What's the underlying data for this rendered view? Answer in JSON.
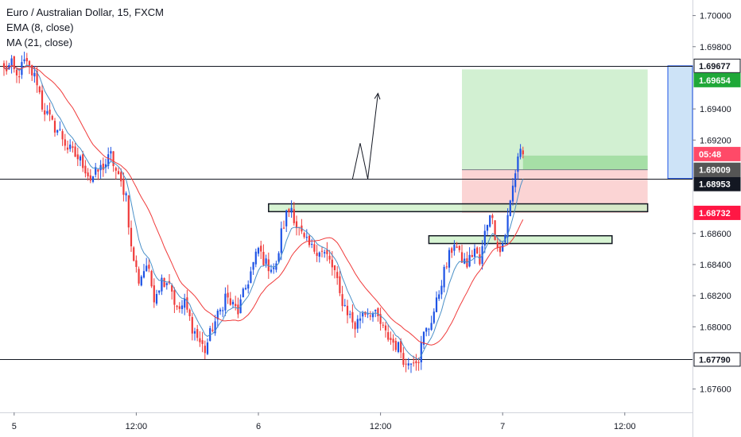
{
  "legend": {
    "symbol": "Euro / Australian Dollar, 15, FXCM",
    "ema": "EMA (8, close)",
    "ma": "MA (21, close)"
  },
  "colors": {
    "up": "#1e53e5",
    "down": "#ef3b3b",
    "ema": "#4a90c8",
    "ma": "#f03b3b",
    "zone_fill": "#c9f0c4",
    "profit_fill": "#d2f0d2",
    "loss_fill": "#fbd4d4",
    "target_tag": "#1fa838",
    "stop_tag": "#ff1744",
    "timer_tag": "#ff4a68",
    "right_box": "#cde3f7"
  },
  "chart_data": {
    "type": "candlestick",
    "ylim": [
      1.6745,
      1.701
    ],
    "y_ticks": [
      "1.70000",
      "1.69800",
      "1.69400",
      "1.69200",
      "1.68600",
      "1.68400",
      "1.68200",
      "1.68000",
      "1.67600"
    ],
    "x_ticks": [
      "5",
      "12:00",
      "6",
      "12:00",
      "7",
      "12:00"
    ],
    "x_tick_bars": [
      4,
      52,
      100,
      148,
      196,
      244
    ],
    "bar_count": 265,
    "price_path": [
      [
        0,
        1.6965
      ],
      [
        3,
        1.6968
      ],
      [
        5,
        1.696
      ],
      [
        8,
        1.697
      ],
      [
        11,
        1.6963
      ],
      [
        13,
        1.6958
      ],
      [
        15,
        1.6942
      ],
      [
        19,
        1.693
      ],
      [
        22,
        1.6925
      ],
      [
        25,
        1.6915
      ],
      [
        28,
        1.691
      ],
      [
        31,
        1.6905
      ],
      [
        34,
        1.6895
      ],
      [
        37,
        1.69
      ],
      [
        40,
        1.6905
      ],
      [
        42,
        1.691
      ],
      [
        45,
        1.6895
      ],
      [
        48,
        1.6885
      ],
      [
        50,
        1.685
      ],
      [
        53,
        1.683
      ],
      [
        56,
        1.684
      ],
      [
        59,
        1.682
      ],
      [
        62,
        1.683
      ],
      [
        65,
        1.683
      ],
      [
        68,
        1.681
      ],
      [
        71,
        1.6815
      ],
      [
        74,
        1.68
      ],
      [
        77,
        1.679
      ],
      [
        79,
        1.6785
      ],
      [
        82,
        1.68
      ],
      [
        85,
        1.681
      ],
      [
        87,
        1.682
      ],
      [
        89,
        1.6815
      ],
      [
        92,
        1.681
      ],
      [
        95,
        1.6825
      ],
      [
        98,
        1.684
      ],
      [
        100,
        1.685
      ],
      [
        103,
        1.684
      ],
      [
        107,
        1.6838
      ],
      [
        109,
        1.686
      ],
      [
        111,
        1.6872
      ],
      [
        113,
        1.6877
      ],
      [
        115,
        1.6865
      ],
      [
        118,
        1.6855
      ],
      [
        121,
        1.685
      ],
      [
        124,
        1.685
      ],
      [
        127,
        1.6845
      ],
      [
        130,
        1.6835
      ],
      [
        132,
        1.682
      ],
      [
        135,
        1.681
      ],
      [
        138,
        1.68
      ],
      [
        141,
        1.681
      ],
      [
        144,
        1.681
      ],
      [
        147,
        1.6805
      ],
      [
        150,
        1.6795
      ],
      [
        153,
        1.679
      ],
      [
        156,
        1.6785
      ],
      [
        158,
        1.6775
      ],
      [
        160,
        1.678
      ],
      [
        163,
        1.678
      ],
      [
        165,
        1.6795
      ],
      [
        167,
        1.68
      ],
      [
        170,
        1.6815
      ],
      [
        172,
        1.683
      ],
      [
        174,
        1.684
      ],
      [
        177,
        1.6855
      ],
      [
        179,
        1.6845
      ],
      [
        182,
        1.684
      ],
      [
        185,
        1.685
      ],
      [
        187,
        1.684
      ],
      [
        189,
        1.686
      ],
      [
        191,
        1.6875
      ],
      [
        193,
        1.686
      ],
      [
        195,
        1.6848
      ],
      [
        197,
        1.686
      ],
      [
        199,
        1.688
      ],
      [
        201,
        1.69
      ],
      [
        202,
        1.691
      ],
      [
        203,
        1.6915
      ],
      [
        204,
        1.691
      ]
    ],
    "ema_period": 8,
    "ma_period": 21,
    "horizontal_lines": [
      1.69677,
      1.68953,
      1.6779
    ],
    "zones": [
      {
        "from_bar": 104,
        "to_bar": 253,
        "top": 1.6879,
        "bottom": 1.6874
      },
      {
        "from_bar": 167,
        "to_bar": 239,
        "top": 1.68585,
        "bottom": 1.68535
      }
    ],
    "position": {
      "from_bar": 180,
      "to_bar": 253,
      "entry": 1.69009,
      "target": 1.69654,
      "stop": 1.68732,
      "current": 1.691
    },
    "projection_arrow": [
      [
        137,
        1.6895
      ],
      [
        140,
        1.6918
      ],
      [
        143,
        1.6895
      ],
      [
        147,
        1.695
      ]
    ],
    "price_tags": [
      {
        "label": "1.69677",
        "value": 1.69677,
        "style": "outline"
      },
      {
        "label": "1.69654",
        "value": 1.69654,
        "style": "target"
      },
      {
        "label": "05:48",
        "value": 1.6911,
        "style": "timer"
      },
      {
        "label": "1.69009",
        "value": 1.69009,
        "style": "entry"
      },
      {
        "label": "1.68953",
        "value": 1.68953,
        "style": "dark"
      },
      {
        "label": "1.68732",
        "value": 1.68732,
        "style": "stop"
      },
      {
        "label": "1.67790",
        "value": 1.6779,
        "style": "outline"
      }
    ]
  }
}
